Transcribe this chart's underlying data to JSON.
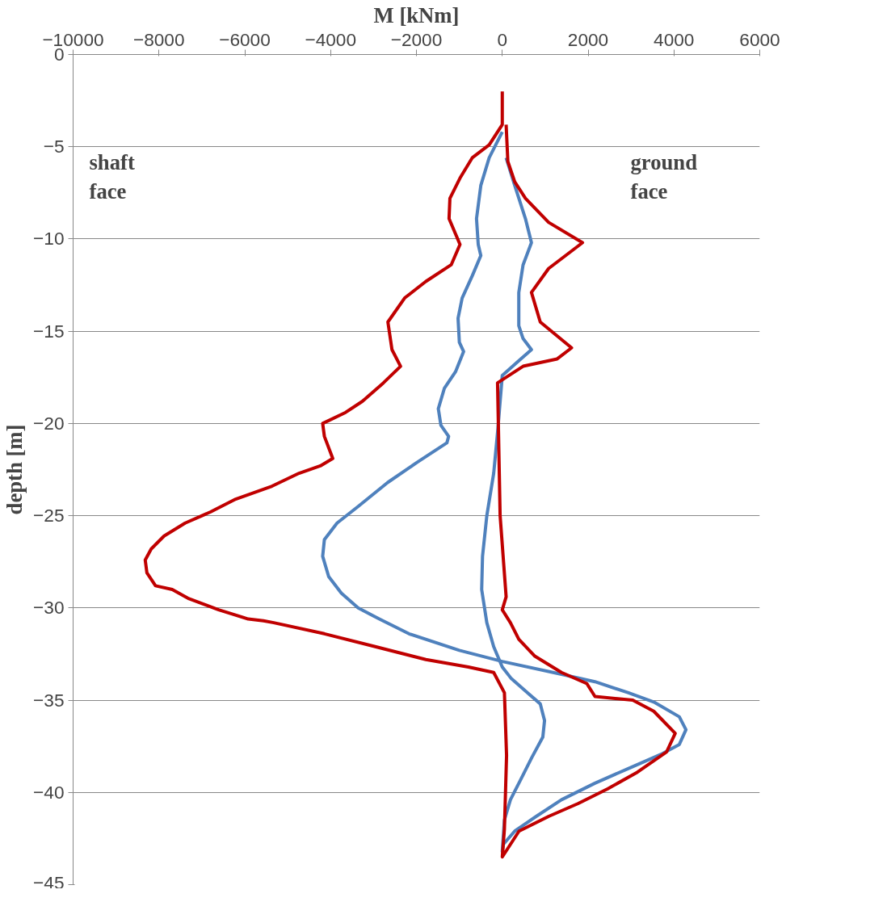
{
  "chart_data": {
    "type": "line",
    "xlabel": "M [kNm]",
    "ylabel": "depth [m]",
    "xlim": [
      -10000,
      6000
    ],
    "xticks": [
      -10000,
      -8000,
      -6000,
      -4000,
      -2000,
      0,
      2000,
      4000,
      6000
    ],
    "ylim": [
      -45,
      0
    ],
    "yticks": [
      -45,
      -40,
      -35,
      -30,
      -25,
      -20,
      -15,
      -10,
      -5,
      0
    ],
    "grid": "y",
    "marker": "none",
    "line_style": "solid",
    "annotations": [
      "shaft face",
      "ground face"
    ],
    "series": [
      {
        "color": "#4f81bd",
        "x": [
          0,
          -305,
          -500,
          -600,
          -560,
          -500,
          -700,
          -935,
          -1030,
          -1000,
          -900,
          -1090,
          -1350,
          -1490,
          -1430,
          -1250,
          -1290,
          -1980,
          -2670,
          -3360,
          -3850,
          -4145,
          -4185,
          -4045,
          -3750,
          -3360,
          -2865,
          -2175,
          -1000,
          0,
          1380,
          2160,
          2940,
          3530,
          4125,
          4280,
          4125,
          3730,
          3040,
          2160,
          1380,
          790,
          290,
          30,
          0,
          50,
          190,
          430,
          690,
          945,
          985,
          885,
          590,
          200,
          0,
          -200,
          -360,
          -480,
          -460,
          -360,
          -200,
          -110,
          0,
          385,
          680,
          485,
          385,
          385,
          485,
          680,
          540,
          290,
          90
        ],
        "values": [
          -4.2,
          -5.6,
          -7.1,
          -8.9,
          -10.3,
          -10.9,
          -12.0,
          -13.2,
          -14.3,
          -15.6,
          -16.1,
          -17.2,
          -18.1,
          -19.2,
          -20.1,
          -20.7,
          -21.05,
          -22.1,
          -23.2,
          -24.5,
          -25.4,
          -26.3,
          -27.2,
          -28.3,
          -29.2,
          -30.0,
          -30.6,
          -31.4,
          -32.3,
          -32.9,
          -33.6,
          -34.0,
          -34.6,
          -35.1,
          -35.9,
          -36.6,
          -37.4,
          -37.9,
          -38.6,
          -39.5,
          -40.4,
          -41.3,
          -42.1,
          -42.8,
          -43.2,
          -41.5,
          -40.4,
          -39.3,
          -38.1,
          -37.0,
          -36.1,
          -35.2,
          -34.6,
          -33.8,
          -33.2,
          -32.1,
          -30.8,
          -29.0,
          -27.2,
          -25.0,
          -22.7,
          -20.5,
          -17.4,
          -16.6,
          -16.0,
          -15.4,
          -14.7,
          -12.9,
          -11.4,
          -10.2,
          -8.9,
          -7.1,
          -5.6
        ]
      },
      {
        "color": "#c00000",
        "x": [
          0,
          0,
          -305,
          -700,
          -985,
          -1220,
          -1240,
          -985,
          -1190,
          -1780,
          -2275,
          -2665,
          -2570,
          -2370,
          -2770,
          -3260,
          -3650,
          -4185,
          -4145,
          -3950,
          -4240,
          -4735,
          -5365,
          -6210,
          -6800,
          -7390,
          -7880,
          -8180,
          -8320,
          -8280,
          -8080,
          -7690,
          -7300,
          -6610,
          -5920,
          -5565,
          -5325,
          -4145,
          -2960,
          -1780,
          -790,
          -200,
          50,
          100,
          50,
          0,
          390,
          1080,
          1770,
          2460,
          3150,
          3830,
          4030,
          3530,
          3040,
          2160,
          1970,
          1380,
          750,
          385,
          190,
          0,
          90,
          -50,
          -110,
          485,
          1280,
          1615,
          885,
          680,
          1080,
          1870,
          1080,
          540,
          290,
          130,
          90
        ],
        "values": [
          -2.0,
          -3.8,
          -4.9,
          -5.6,
          -6.7,
          -7.8,
          -8.9,
          -10.3,
          -11.4,
          -12.3,
          -13.2,
          -14.5,
          -16.0,
          -16.9,
          -17.8,
          -18.8,
          -19.4,
          -20.0,
          -20.7,
          -21.9,
          -22.3,
          -22.7,
          -23.4,
          -24.1,
          -24.8,
          -25.4,
          -26.1,
          -26.8,
          -27.4,
          -28.1,
          -28.8,
          -29.0,
          -29.5,
          -30.1,
          -30.6,
          -30.7,
          -30.8,
          -31.4,
          -32.1,
          -32.8,
          -33.2,
          -33.5,
          -34.6,
          -38.0,
          -42.0,
          -43.5,
          -42.1,
          -41.3,
          -40.6,
          -39.8,
          -38.9,
          -37.8,
          -36.8,
          -35.6,
          -35.0,
          -34.8,
          -34.1,
          -33.5,
          -32.6,
          -31.7,
          -30.8,
          -30.1,
          -29.4,
          -25.0,
          -17.8,
          -16.9,
          -16.5,
          -15.9,
          -14.5,
          -12.9,
          -11.6,
          -10.2,
          -9.1,
          -7.8,
          -6.9,
          -5.8,
          -3.8
        ]
      }
    ]
  }
}
